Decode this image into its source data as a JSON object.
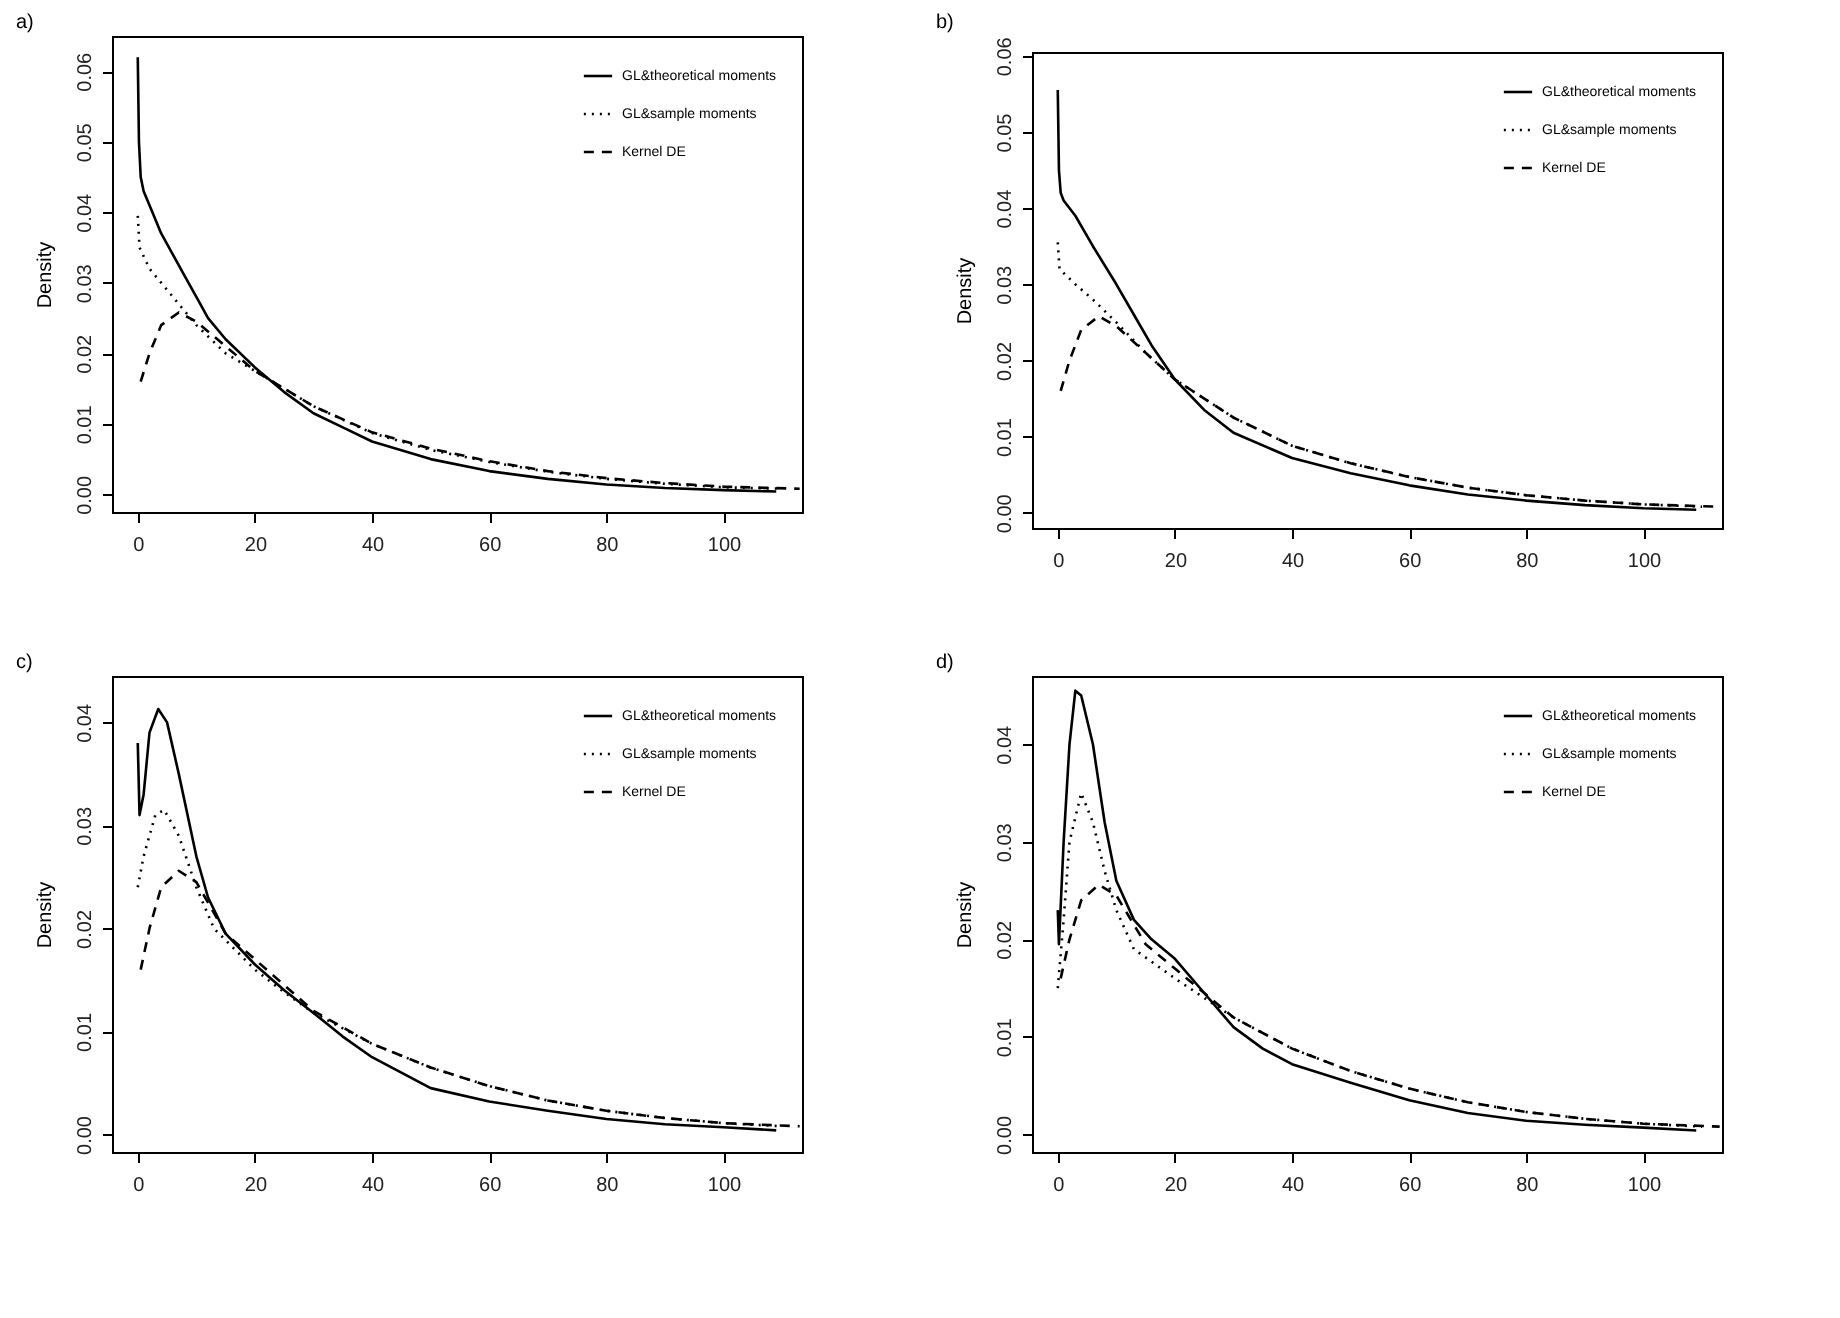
{
  "chart_data": [
    {
      "type": "line",
      "title": "a)",
      "ylabel": "Density",
      "legend": "top right",
      "xlim": [
        -4.4,
        113.4
      ],
      "ylim": [
        -0.0025,
        0.065
      ],
      "xticks": [
        0,
        20,
        40,
        60,
        80,
        100
      ],
      "yticks": [
        {
          "value": 0,
          "label": "0.00"
        },
        {
          "value": 0.01,
          "label": "0.01"
        },
        {
          "value": 0.02,
          "label": "0.02"
        },
        {
          "value": 0.03,
          "label": "0.03"
        },
        {
          "value": 0.04,
          "label": "0.04"
        },
        {
          "value": 0.05,
          "label": "0.05"
        },
        {
          "value": 0.06,
          "label": "0.06"
        }
      ],
      "series": [
        {
          "name": "GL&theoretical moments",
          "color": "#000000",
          "line_style": "solid",
          "x": [
            0,
            0.2,
            0.5,
            1,
            2,
            4,
            6,
            8,
            10,
            12,
            15,
            20,
            25,
            30,
            35,
            40,
            50,
            60,
            70,
            80,
            90,
            100,
            109
          ],
          "values": [
            0.062,
            0.05,
            0.045,
            0.043,
            0.041,
            0.037,
            0.034,
            0.031,
            0.028,
            0.025,
            0.022,
            0.018,
            0.0145,
            0.0115,
            0.0095,
            0.0075,
            0.005,
            0.0033,
            0.0022,
            0.0014,
            0.0009,
            0.0006,
            0.0004
          ]
        },
        {
          "name": "GL&sample moments",
          "color": "#000000",
          "line_style": "dotted",
          "x": [
            0,
            0.3,
            2,
            5,
            8,
            10,
            15,
            20,
            25,
            30,
            40,
            50,
            60,
            70,
            80,
            90,
            100,
            110
          ],
          "values": [
            0.0395,
            0.035,
            0.032,
            0.029,
            0.026,
            0.024,
            0.02,
            0.0175,
            0.015,
            0.0125,
            0.0087,
            0.0063,
            0.0046,
            0.0032,
            0.0022,
            0.0015,
            0.001,
            0.0008
          ]
        },
        {
          "name": "Kernel DE",
          "color": "#000000",
          "line_style": "dashed",
          "x": [
            0.5,
            2,
            4,
            7,
            10,
            15,
            20,
            30,
            40,
            50,
            60,
            70,
            80,
            90,
            100,
            113
          ],
          "values": [
            0.016,
            0.02,
            0.024,
            0.0258,
            0.0245,
            0.021,
            0.0175,
            0.0125,
            0.0088,
            0.0065,
            0.0047,
            0.0033,
            0.0023,
            0.0016,
            0.0011,
            0.0008
          ]
        }
      ]
    },
    {
      "type": "line",
      "title": "b)",
      "ylabel": "Density",
      "legend": "top right",
      "xlim": [
        -4.4,
        113.4
      ],
      "ylim": [
        -0.002,
        0.0605
      ],
      "xticks": [
        0,
        20,
        40,
        60,
        80,
        100
      ],
      "yticks": [
        {
          "value": 0,
          "label": "0.00"
        },
        {
          "value": 0.01,
          "label": "0.01"
        },
        {
          "value": 0.02,
          "label": "0.02"
        },
        {
          "value": 0.03,
          "label": "0.03"
        },
        {
          "value": 0.04,
          "label": "0.04"
        },
        {
          "value": 0.05,
          "label": "0.05"
        },
        {
          "value": 0.06,
          "label": "0.06"
        }
      ],
      "series": [
        {
          "name": "GL&theoretical moments",
          "color": "#000000",
          "line_style": "solid",
          "x": [
            0,
            0.2,
            0.5,
            1,
            3,
            6,
            10,
            13,
            16,
            20,
            25,
            30,
            40,
            50,
            60,
            70,
            80,
            90,
            100,
            109
          ],
          "values": [
            0.0555,
            0.045,
            0.042,
            0.041,
            0.039,
            0.035,
            0.03,
            0.026,
            0.022,
            0.0175,
            0.0135,
            0.0105,
            0.0072,
            0.0052,
            0.0036,
            0.0024,
            0.0016,
            0.001,
            0.0006,
            0.0004
          ]
        },
        {
          "name": "GL&sample moments",
          "color": "#000000",
          "line_style": "dotted",
          "x": [
            0,
            0.3,
            3,
            6,
            10,
            15,
            20,
            30,
            40,
            50,
            60,
            70,
            80,
            90,
            100,
            110
          ],
          "values": [
            0.0355,
            0.032,
            0.03,
            0.028,
            0.025,
            0.021,
            0.0175,
            0.0125,
            0.0088,
            0.0065,
            0.0047,
            0.0033,
            0.0023,
            0.0016,
            0.0011,
            0.0008
          ]
        },
        {
          "name": "Kernel DE",
          "color": "#000000",
          "line_style": "dashed",
          "x": [
            0.5,
            2,
            4,
            7,
            10,
            15,
            20,
            30,
            40,
            50,
            60,
            70,
            80,
            90,
            100,
            113
          ],
          "values": [
            0.016,
            0.02,
            0.024,
            0.0258,
            0.0245,
            0.021,
            0.0175,
            0.0125,
            0.0088,
            0.0065,
            0.0047,
            0.0033,
            0.0023,
            0.0016,
            0.0011,
            0.0008
          ]
        }
      ]
    },
    {
      "type": "line",
      "title": "c)",
      "ylabel": "Density",
      "legend": "top right",
      "xlim": [
        -4.4,
        113.4
      ],
      "ylim": [
        -0.0017,
        0.0445
      ],
      "xticks": [
        0,
        20,
        40,
        60,
        80,
        100
      ],
      "yticks": [
        {
          "value": 0,
          "label": "0.00"
        },
        {
          "value": 0.01,
          "label": "0.01"
        },
        {
          "value": 0.02,
          "label": "0.02"
        },
        {
          "value": 0.03,
          "label": "0.03"
        },
        {
          "value": 0.04,
          "label": "0.04"
        }
      ],
      "series": [
        {
          "name": "GL&theoretical moments",
          "color": "#000000",
          "line_style": "solid",
          "x": [
            0,
            0.3,
            1,
            2,
            3.5,
            5,
            7,
            10,
            12,
            15,
            20,
            25,
            30,
            35,
            40,
            50,
            60,
            70,
            80,
            90,
            100,
            109
          ],
          "values": [
            0.038,
            0.031,
            0.033,
            0.039,
            0.0413,
            0.04,
            0.035,
            0.027,
            0.023,
            0.0195,
            0.0165,
            0.014,
            0.0118,
            0.0095,
            0.0075,
            0.0045,
            0.0032,
            0.0023,
            0.0015,
            0.001,
            0.0007,
            0.0004
          ]
        },
        {
          "name": "GL&sample moments",
          "color": "#000000",
          "line_style": "dotted",
          "x": [
            0,
            1,
            3,
            4.5,
            7,
            10,
            13,
            20,
            25,
            30,
            40,
            50,
            60,
            70,
            80,
            90,
            100,
            110
          ],
          "values": [
            0.024,
            0.027,
            0.031,
            0.0315,
            0.029,
            0.024,
            0.02,
            0.016,
            0.0138,
            0.0118,
            0.0088,
            0.0065,
            0.0047,
            0.0033,
            0.0023,
            0.0016,
            0.0011,
            0.0008
          ]
        },
        {
          "name": "Kernel DE",
          "color": "#000000",
          "line_style": "dashed",
          "x": [
            0.5,
            2,
            4,
            7,
            10,
            15,
            20,
            30,
            40,
            50,
            60,
            70,
            80,
            90,
            100,
            113
          ],
          "values": [
            0.016,
            0.02,
            0.024,
            0.0256,
            0.0245,
            0.0195,
            0.017,
            0.012,
            0.0088,
            0.0065,
            0.0047,
            0.0033,
            0.0023,
            0.0016,
            0.0011,
            0.0008
          ]
        }
      ]
    },
    {
      "type": "line",
      "title": "d)",
      "ylabel": "Density",
      "legend": "top right",
      "xlim": [
        -4.4,
        113.4
      ],
      "ylim": [
        -0.0018,
        0.047
      ],
      "xticks": [
        0,
        20,
        40,
        60,
        80,
        100
      ],
      "yticks": [
        {
          "value": 0,
          "label": "0.00"
        },
        {
          "value": 0.01,
          "label": "0.01"
        },
        {
          "value": 0.02,
          "label": "0.02"
        },
        {
          "value": 0.03,
          "label": "0.03"
        },
        {
          "value": 0.04,
          "label": "0.04"
        }
      ],
      "series": [
        {
          "name": "GL&theoretical moments",
          "color": "#000000",
          "line_style": "solid",
          "x": [
            0,
            0.2,
            1,
            2,
            3,
            4,
            6,
            8,
            10,
            13,
            16,
            20,
            25,
            30,
            35,
            40,
            50,
            60,
            70,
            80,
            90,
            100,
            109
          ],
          "values": [
            0.023,
            0.0195,
            0.03,
            0.04,
            0.0455,
            0.045,
            0.04,
            0.032,
            0.026,
            0.022,
            0.02,
            0.018,
            0.0145,
            0.011,
            0.0088,
            0.0072,
            0.0053,
            0.0035,
            0.0022,
            0.0014,
            0.001,
            0.0007,
            0.0004
          ]
        },
        {
          "name": "GL&sample moments",
          "color": "#000000",
          "line_style": "dotted",
          "x": [
            0,
            1,
            2,
            4,
            6,
            8,
            10,
            13,
            20,
            25,
            30,
            40,
            50,
            60,
            70,
            80,
            90,
            100,
            110
          ],
          "values": [
            0.015,
            0.022,
            0.03,
            0.035,
            0.032,
            0.027,
            0.023,
            0.019,
            0.016,
            0.014,
            0.012,
            0.0088,
            0.0065,
            0.0047,
            0.0033,
            0.0023,
            0.0016,
            0.0011,
            0.0008
          ]
        },
        {
          "name": "Kernel DE",
          "color": "#000000",
          "line_style": "dashed",
          "x": [
            0.5,
            2,
            4,
            7,
            10,
            15,
            20,
            30,
            40,
            50,
            60,
            70,
            80,
            90,
            100,
            113
          ],
          "values": [
            0.016,
            0.02,
            0.024,
            0.0256,
            0.0245,
            0.0195,
            0.017,
            0.012,
            0.0088,
            0.0065,
            0.0047,
            0.0033,
            0.0023,
            0.0016,
            0.0011,
            0.0008
          ]
        }
      ]
    }
  ]
}
